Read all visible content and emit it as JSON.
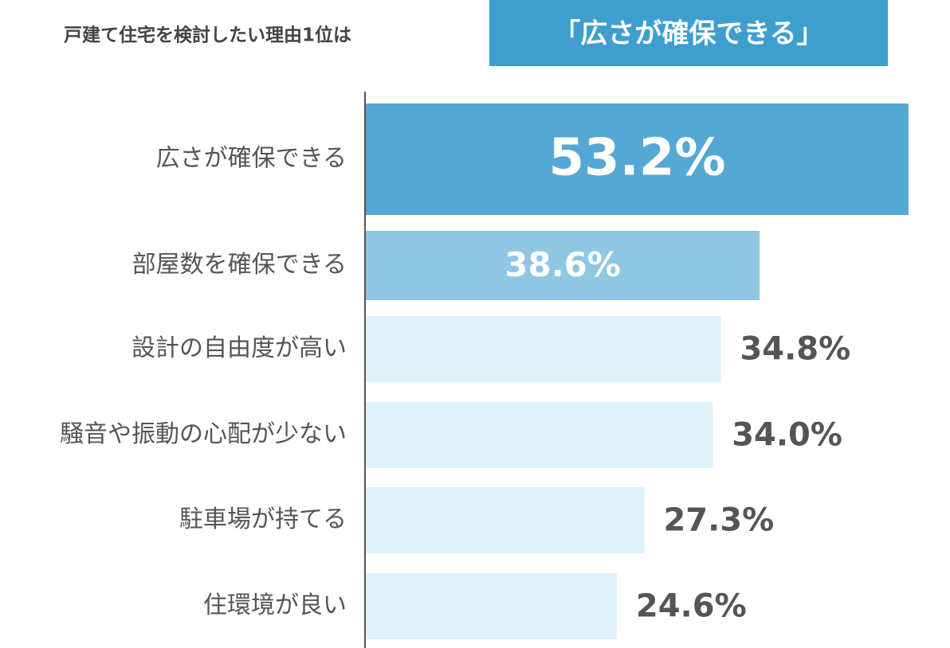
{
  "chart_data": {
    "type": "bar",
    "orientation": "horizontal",
    "title": "戸建て住宅を検討したい理由1位は",
    "title_highlight": "「広さが確保できる」",
    "categories": [
      "広さが確保できる",
      "部屋数を確保できる",
      "設計の自由度が高い",
      "騒音や振動の心配が少ない",
      "駐車場が持てる",
      "住環境が良い"
    ],
    "values": [
      53.2,
      38.6,
      34.8,
      34.0,
      27.3,
      24.6
    ],
    "value_labels": [
      "53.2%",
      "38.6%",
      "34.8%",
      "34.0%",
      "27.3%",
      "24.6%"
    ],
    "colors": [
      "#55a8d4",
      "#8fc6e2",
      "#dff1fb",
      "#dff1fb",
      "#dff1fb",
      "#dff1fb"
    ]
  }
}
